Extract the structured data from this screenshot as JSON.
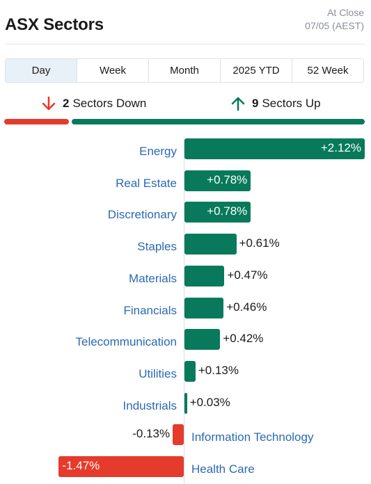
{
  "header": {
    "title": "ASX Sectors",
    "status_label": "At Close",
    "status_date": "07/05 (AEST)"
  },
  "tabs": [
    {
      "label": "Day",
      "active": true
    },
    {
      "label": "Week",
      "active": false
    },
    {
      "label": "Month",
      "active": false
    },
    {
      "label": "2025 YTD",
      "active": false
    },
    {
      "label": "52 Week",
      "active": false
    }
  ],
  "summary": {
    "down_count": "2",
    "down_label": "Sectors Down",
    "up_count": "9",
    "up_label": "Sectors Up"
  },
  "colors": {
    "positive": "#087a5b",
    "negative": "#e53b2c",
    "label": "#2a6ab3"
  },
  "icons": {
    "down": "arrow-down-icon",
    "up": "arrow-up-icon"
  },
  "chart_data": {
    "type": "bar",
    "orientation": "horizontal",
    "categories": [
      "Energy",
      "Real Estate",
      "Discretionary",
      "Staples",
      "Materials",
      "Financials",
      "Telecommunication",
      "Utilities",
      "Industrials",
      "Information Technology",
      "Health Care"
    ],
    "values": [
      2.12,
      0.78,
      0.78,
      0.61,
      0.47,
      0.46,
      0.42,
      0.13,
      0.03,
      -0.13,
      -1.47
    ],
    "value_labels": [
      "+2.12%",
      "+0.78%",
      "+0.78%",
      "+0.61%",
      "+0.47%",
      "+0.46%",
      "+0.42%",
      "+0.13%",
      "+0.03%",
      "-0.13%",
      "-1.47%"
    ],
    "unit": "%",
    "grid": false,
    "legend": "none"
  }
}
